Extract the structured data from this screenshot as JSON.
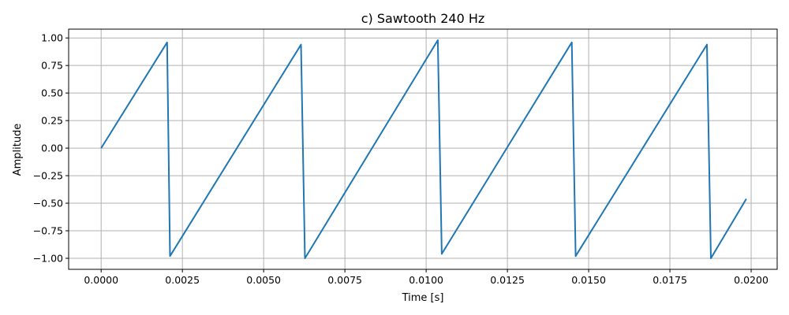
{
  "chart_data": {
    "type": "line",
    "title": "c) Sawtooth 240 Hz",
    "xlabel": "Time [s]",
    "ylabel": "Amplitude",
    "xlim": [
      -0.001,
      0.0208
    ],
    "ylim": [
      -1.1,
      1.08
    ],
    "grid": true,
    "x_ticks": [
      0.0,
      0.0025,
      0.005,
      0.0075,
      0.01,
      0.0125,
      0.015,
      0.0175,
      0.02
    ],
    "x_tick_labels": [
      "0.0000",
      "0.0025",
      "0.0050",
      "0.0075",
      "0.0100",
      "0.0125",
      "0.0150",
      "0.0175",
      "0.0200"
    ],
    "y_ticks": [
      1.0,
      0.75,
      0.5,
      0.25,
      0.0,
      -0.25,
      -0.5,
      -0.75,
      -1.0
    ],
    "y_tick_labels": [
      "1.00",
      "0.75",
      "0.50",
      "0.25",
      "0.00",
      "−0.25",
      "−0.50",
      "−0.75",
      "−1.00"
    ],
    "series": [
      {
        "color": "#1f77b4",
        "x": [
          0.0,
          0.00203,
          0.00212,
          0.00615,
          0.00627,
          0.01036,
          0.01048,
          0.01448,
          0.0146,
          0.01864,
          0.01876,
          0.01985
        ],
        "y": [
          0.0,
          0.96,
          -0.98,
          0.94,
          -1.0,
          0.98,
          -0.96,
          0.96,
          -0.98,
          0.94,
          -1.0,
          -0.46
        ]
      }
    ]
  }
}
